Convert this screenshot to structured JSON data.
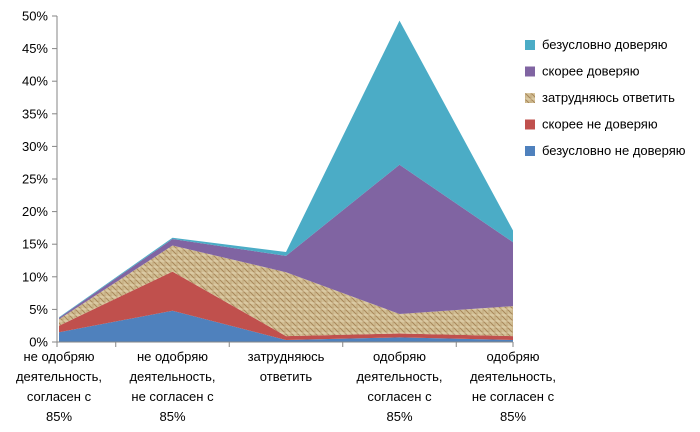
{
  "chart_data": {
    "type": "area",
    "stacked": true,
    "categories": [
      [
        "не одобряю",
        "деятельность,",
        "согласен с",
        "85%"
      ],
      [
        "не одобряю",
        "деятельность,",
        "не согласен с",
        "85%"
      ],
      [
        "затрудняюсь",
        "ответить"
      ],
      [
        "одобряю",
        "деятельность,",
        "согласен с",
        "85%"
      ],
      [
        "одобряю",
        "деятельность,",
        "не согласен с",
        "85%"
      ]
    ],
    "yticks": [
      "0%",
      "5%",
      "10%",
      "15%",
      "20%",
      "25%",
      "30%",
      "35%",
      "40%",
      "45%",
      "50%"
    ],
    "ylim": [
      0,
      50
    ],
    "grid": false,
    "legend_position": "right",
    "series": [
      {
        "name": "безусловно не доверяю",
        "color": "#4f81bd",
        "pattern": false,
        "values": [
          1.5,
          4.8,
          0.3,
          0.7,
          0.3
        ]
      },
      {
        "name": "скорее не доверяю",
        "color": "#c0504d",
        "pattern": false,
        "values": [
          1.0,
          6.0,
          0.6,
          0.6,
          0.6
        ]
      },
      {
        "name": "затрудняюсь ответить",
        "color": "#c8b48c",
        "pattern": true,
        "values": [
          1.0,
          4.0,
          9.8,
          3.0,
          4.6
        ]
      },
      {
        "name": "скорее доверяю",
        "color": "#8064a2",
        "pattern": false,
        "values": [
          0.2,
          1.0,
          2.5,
          22.9,
          9.8
        ]
      },
      {
        "name": "безусловно доверяю",
        "color": "#4bacc6",
        "pattern": false,
        "values": [
          0.1,
          0.2,
          0.6,
          22.1,
          1.8
        ]
      }
    ]
  }
}
